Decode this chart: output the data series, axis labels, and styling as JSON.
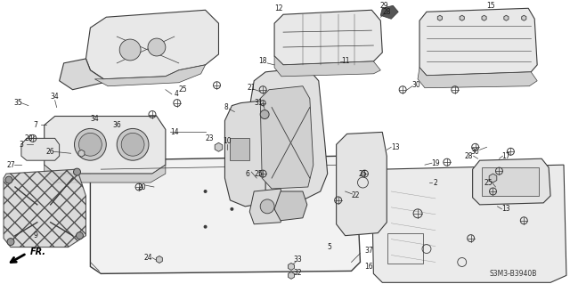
{
  "background_color": "#ffffff",
  "diagram_ref": "S3M3-B3940B",
  "fig_width": 6.4,
  "fig_height": 3.19,
  "line_color": "#3a3a3a",
  "label_color": "#1a1a1a",
  "label_fs": 5.0
}
